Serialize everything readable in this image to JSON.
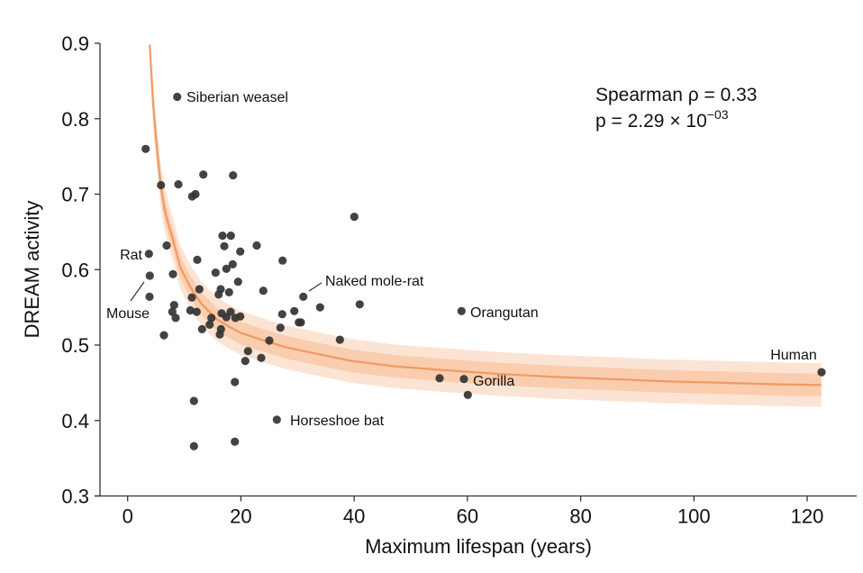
{
  "chart_data": {
    "type": "scatter",
    "title": "",
    "xlabel": "Maximum lifespan (years)",
    "ylabel": "DREAM activity",
    "xlim": [
      -4.9,
      128
    ],
    "ylim": [
      0.3,
      0.9
    ],
    "xticks": [
      0,
      20,
      40,
      60,
      80,
      100,
      120
    ],
    "xtick_labels": [
      "0",
      "20",
      "40",
      "60",
      "80",
      "100",
      "120"
    ],
    "yticks": [
      0.3,
      0.4,
      0.5,
      0.6,
      0.7,
      0.8,
      0.9
    ],
    "ytick_labels": [
      "0.3",
      "0.4",
      "0.5",
      "0.6",
      "0.7",
      "0.8",
      "0.9"
    ],
    "grid": false,
    "colors": {
      "point": "#333333",
      "fit_line": "#f0945a",
      "band_inner": "#f7b98e",
      "band_outer": "#fbd9c2",
      "text": "#111111"
    },
    "annotation": {
      "line1": "Spearman ρ = 0.33",
      "line2_prefix": "p = 2.29 × 10",
      "line2_exponent": "−03",
      "placement": "top-right"
    },
    "labeled_points": [
      {
        "label": "Siberian weasel",
        "x": 8.75,
        "y": 0.829
      },
      {
        "label": "Rat",
        "x": 3.75,
        "y": 0.621
      },
      {
        "label": "Mouse",
        "x": 3.91,
        "y": 0.592
      },
      {
        "label": "Naked mole-rat",
        "x": 31.02,
        "y": 0.564
      },
      {
        "label": "Orangutan",
        "x": 58.96,
        "y": 0.545
      },
      {
        "label": "Human",
        "x": 122.54,
        "y": 0.464
      },
      {
        "label": "Gorilla",
        "x": 59.38,
        "y": 0.455
      },
      {
        "label": "Horseshoe bat",
        "x": 26.34,
        "y": 0.401
      }
    ],
    "points": [
      [
        8.75,
        0.829
      ],
      [
        3.18,
        0.76
      ],
      [
        5.89,
        0.712
      ],
      [
        8.96,
        0.713
      ],
      [
        13.36,
        0.726
      ],
      [
        18.61,
        0.725
      ],
      [
        11.39,
        0.697
      ],
      [
        11.98,
        0.7
      ],
      [
        40.03,
        0.67
      ],
      [
        16.75,
        0.645
      ],
      [
        18.23,
        0.645
      ],
      [
        6.89,
        0.632
      ],
      [
        17.07,
        0.631
      ],
      [
        19.89,
        0.624
      ],
      [
        22.8,
        0.632
      ],
      [
        3.75,
        0.621
      ],
      [
        27.36,
        0.612
      ],
      [
        12.3,
        0.613
      ],
      [
        18.55,
        0.607
      ],
      [
        17.44,
        0.601
      ],
      [
        15.53,
        0.596
      ],
      [
        8.0,
        0.594
      ],
      [
        3.91,
        0.592
      ],
      [
        19.5,
        0.584
      ],
      [
        12.66,
        0.574
      ],
      [
        16.43,
        0.574
      ],
      [
        23.96,
        0.572
      ],
      [
        17.91,
        0.57
      ],
      [
        16.07,
        0.567
      ],
      [
        3.87,
        0.564
      ],
      [
        31.02,
        0.564
      ],
      [
        11.34,
        0.563
      ],
      [
        8.21,
        0.553
      ],
      [
        40.98,
        0.554
      ],
      [
        33.98,
        0.55
      ],
      [
        11.07,
        0.546
      ],
      [
        12.19,
        0.544
      ],
      [
        16.59,
        0.542
      ],
      [
        29.43,
        0.545
      ],
      [
        58.96,
        0.545
      ],
      [
        27.3,
        0.541
      ],
      [
        7.89,
        0.544
      ],
      [
        18.18,
        0.544
      ],
      [
        19.89,
        0.538
      ],
      [
        17.44,
        0.537
      ],
      [
        19.03,
        0.536
      ],
      [
        14.79,
        0.536
      ],
      [
        8.48,
        0.536
      ],
      [
        30.23,
        0.53
      ],
      [
        30.59,
        0.53
      ],
      [
        14.48,
        0.527
      ],
      [
        13.14,
        0.521
      ],
      [
        16.48,
        0.521
      ],
      [
        26.98,
        0.523
      ],
      [
        16.27,
        0.514
      ],
      [
        6.41,
        0.513
      ],
      [
        25.02,
        0.506
      ],
      [
        37.48,
        0.507
      ],
      [
        21.25,
        0.492
      ],
      [
        20.78,
        0.479
      ],
      [
        23.59,
        0.483
      ],
      [
        122.54,
        0.464
      ],
      [
        55.09,
        0.456
      ],
      [
        59.38,
        0.455
      ],
      [
        18.93,
        0.451
      ],
      [
        60.07,
        0.434
      ],
      [
        11.71,
        0.426
      ],
      [
        26.34,
        0.401
      ],
      [
        18.93,
        0.372
      ],
      [
        11.71,
        0.366
      ]
    ],
    "fit_curve": [
      [
        3.9,
        0.898
      ],
      [
        4.5,
        0.82
      ],
      [
        5.0,
        0.775
      ],
      [
        5.8,
        0.714
      ],
      [
        6.5,
        0.68
      ],
      [
        7.2,
        0.66
      ],
      [
        8.0,
        0.64
      ],
      [
        9.3,
        0.603
      ],
      [
        11.0,
        0.578
      ],
      [
        13.0,
        0.555
      ],
      [
        15.6,
        0.535
      ],
      [
        18.0,
        0.524
      ],
      [
        20.0,
        0.516
      ],
      [
        23.6,
        0.507
      ],
      [
        28.0,
        0.497
      ],
      [
        33.0,
        0.489
      ],
      [
        39.5,
        0.479
      ],
      [
        47.0,
        0.472
      ],
      [
        55.4,
        0.467
      ],
      [
        65.0,
        0.462
      ],
      [
        75.0,
        0.458
      ],
      [
        85.0,
        0.455
      ],
      [
        95.0,
        0.452
      ],
      [
        105.0,
        0.45
      ],
      [
        115.0,
        0.448
      ],
      [
        122.5,
        0.447
      ]
    ],
    "band_inner_halfwidth": 0.015,
    "band_outer_halfwidth": 0.029
  }
}
